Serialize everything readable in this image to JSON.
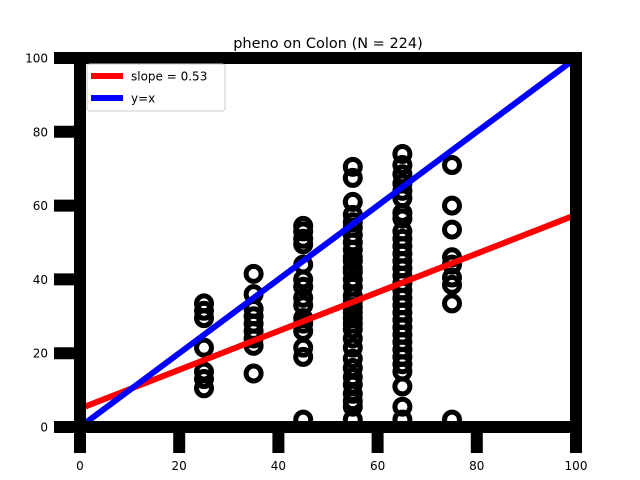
{
  "chart_data": {
    "type": "scatter",
    "title": "pheno on Colon (N = 224)",
    "xlabel": "",
    "ylabel": "",
    "xlim": [
      0,
      100
    ],
    "ylim": [
      0,
      100
    ],
    "xticks": [
      0,
      20,
      40,
      60,
      80,
      100
    ],
    "yticks": [
      0,
      20,
      40,
      60,
      80,
      100
    ],
    "grid": false,
    "legend_position": "top-left",
    "colors": {
      "points": "#000000",
      "fit": "#ff0000",
      "identity": "#0000ff"
    },
    "lines": [
      {
        "label": "slope = 0.53",
        "color": "#ff0000",
        "x": [
          0,
          100
        ],
        "y": [
          5,
          57.5
        ]
      },
      {
        "label": "y=x",
        "color": "#0000ff",
        "x": [
          0,
          100
        ],
        "y": [
          0,
          100
        ]
      }
    ],
    "series": [
      {
        "x": 25,
        "y": [
          10.5,
          13,
          15,
          21.5,
          29.5,
          31.5,
          33.5
        ]
      },
      {
        "x": 35,
        "y": [
          14.5,
          22,
          24,
          26,
          28,
          30,
          32,
          36,
          41.5
        ]
      },
      {
        "x": 45,
        "y": [
          2,
          19,
          21.5,
          26,
          28,
          29.5,
          33,
          35,
          38,
          40,
          44,
          49.5,
          51,
          53,
          54.5
        ]
      },
      {
        "x": 55,
        "y": [
          2,
          5.5,
          7,
          9,
          11.5,
          13.5,
          16,
          18.5,
          21.5,
          24,
          26.5,
          28,
          29.5,
          31,
          32.5,
          34,
          35.5,
          38,
          40,
          42,
          43,
          45,
          46,
          48,
          50,
          52,
          54,
          55.5,
          57.5,
          61,
          67.5,
          70.5
        ]
      },
      {
        "x": 65,
        "y": [
          2,
          5.5,
          11,
          15,
          17,
          19,
          21,
          23,
          25,
          27,
          29,
          31,
          33,
          35,
          37,
          39,
          41,
          43,
          45,
          47,
          49,
          51,
          53,
          56.5,
          58,
          62,
          64,
          66,
          68.5,
          71,
          74
        ]
      },
      {
        "x": 75,
        "y": [
          2,
          33.5,
          38.5,
          40.5,
          44,
          46,
          53.5,
          60,
          71
        ]
      }
    ]
  }
}
